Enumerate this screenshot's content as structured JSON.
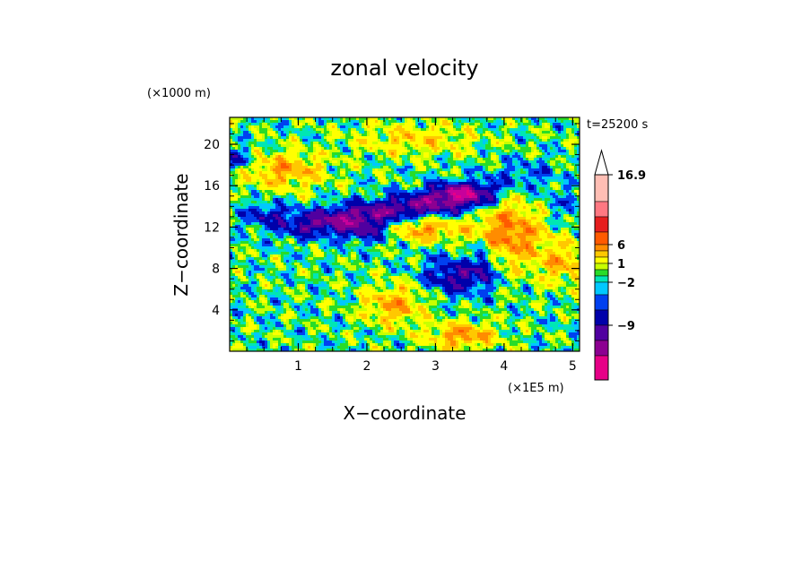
{
  "chart_data": {
    "type": "heatmap",
    "title": "zonal velocity",
    "xlabel": "X−coordinate",
    "ylabel": "Z−coordinate",
    "x_unit_label": "(×1E5 m)",
    "y_unit_label": "(×1000 m)",
    "time_label": "t=25200 s",
    "xlim": [
      0,
      5.1
    ],
    "ylim": [
      0,
      22.6
    ],
    "x_ticks": [
      1,
      2,
      3,
      4,
      5
    ],
    "y_ticks": [
      4,
      8,
      12,
      16,
      20
    ],
    "x_tick_labels": [
      "1",
      "2",
      "3",
      "4",
      "5"
    ],
    "y_tick_labels": [
      "4",
      "8",
      "12",
      "16",
      "20"
    ],
    "colorbar": {
      "levels": [
        -14,
        -11.5,
        -9,
        -6.5,
        -4,
        -2,
        -1,
        0,
        1,
        2,
        4,
        6,
        8.5,
        11,
        13.5,
        16.9
      ],
      "colors": [
        "#e60087",
        "#c8009b",
        "#8c0091",
        "#5000a0",
        "#0000aa",
        "#0040f0",
        "#00c8ff",
        "#00e6b4",
        "#28dc28",
        "#c8ff00",
        "#ffff00",
        "#ffc800",
        "#ff8c00",
        "#ff5a00",
        "#e61e1e",
        "#ff7882",
        "#ffbeb4"
      ],
      "labels": [
        {
          "text": "16.9",
          "value": 16.9
        },
        {
          "text": "6",
          "value": 6
        },
        {
          "text": "1",
          "value": 1
        },
        {
          "text": "−2",
          "value": -2
        },
        {
          "text": "−9",
          "value": -9
        }
      ]
    }
  }
}
